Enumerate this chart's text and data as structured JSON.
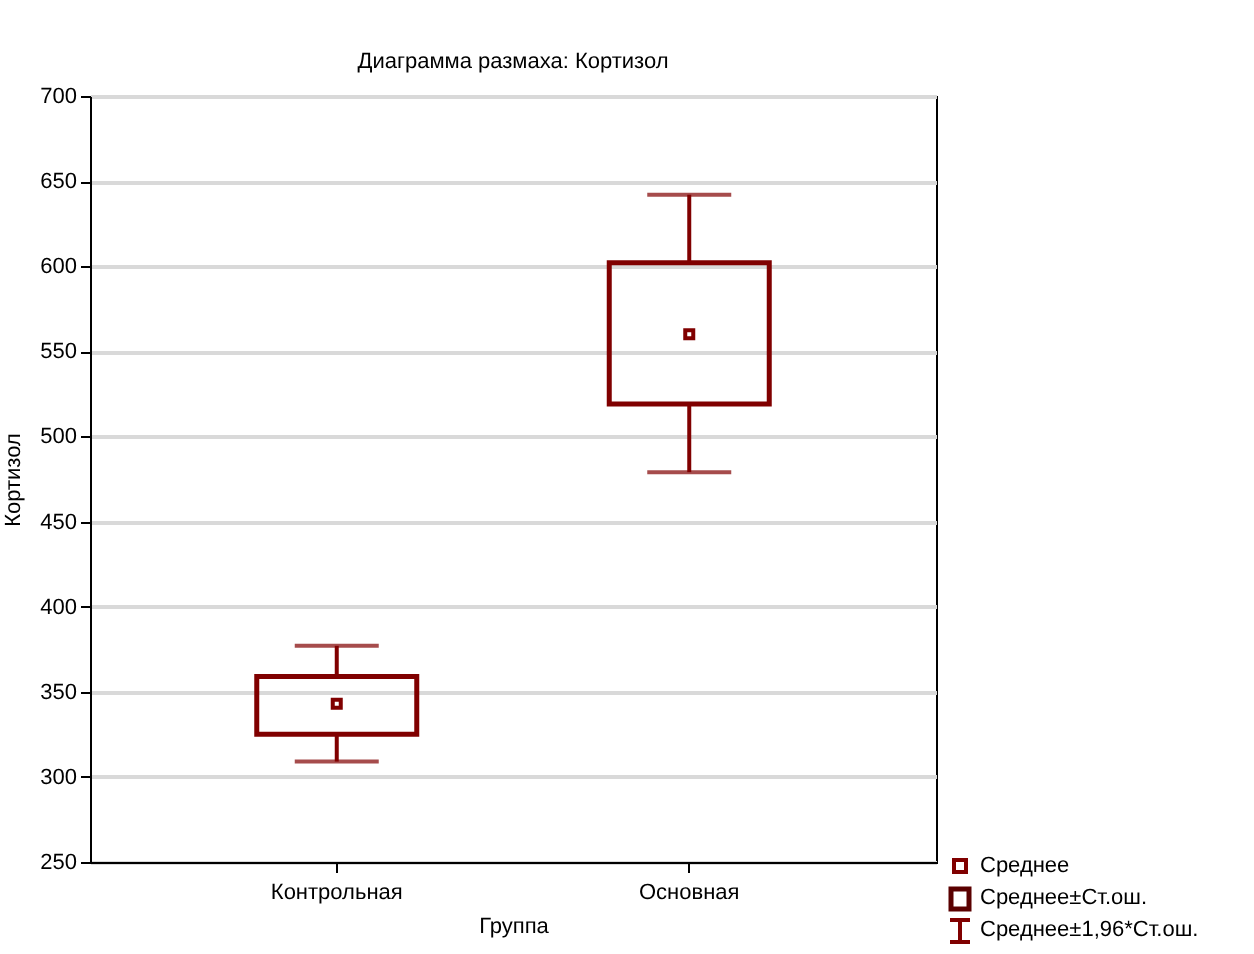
{
  "chart_data": {
    "type": "box",
    "title": "Диаграмма размаха:  Кортизол",
    "xlabel": "Группа",
    "ylabel": "Кортизол",
    "categories": [
      "Контрольная",
      "Основная"
    ],
    "boxes": [
      {
        "low": 309,
        "q1": 325,
        "median": 343,
        "q3": 359,
        "high": 377
      },
      {
        "low": 479,
        "q1": 519,
        "median": 560,
        "q3": 602,
        "high": 642
      }
    ],
    "color": "#800000",
    "ylim": [
      250,
      700
    ],
    "yticks": [
      250,
      300,
      350,
      400,
      450,
      500,
      550,
      600,
      650,
      700
    ],
    "grid": "y",
    "marker": "square",
    "annotations": [
      "Среднее",
      "Среднее±Ст.ош.",
      "Среднее±1,96*Ст.ош."
    ]
  }
}
